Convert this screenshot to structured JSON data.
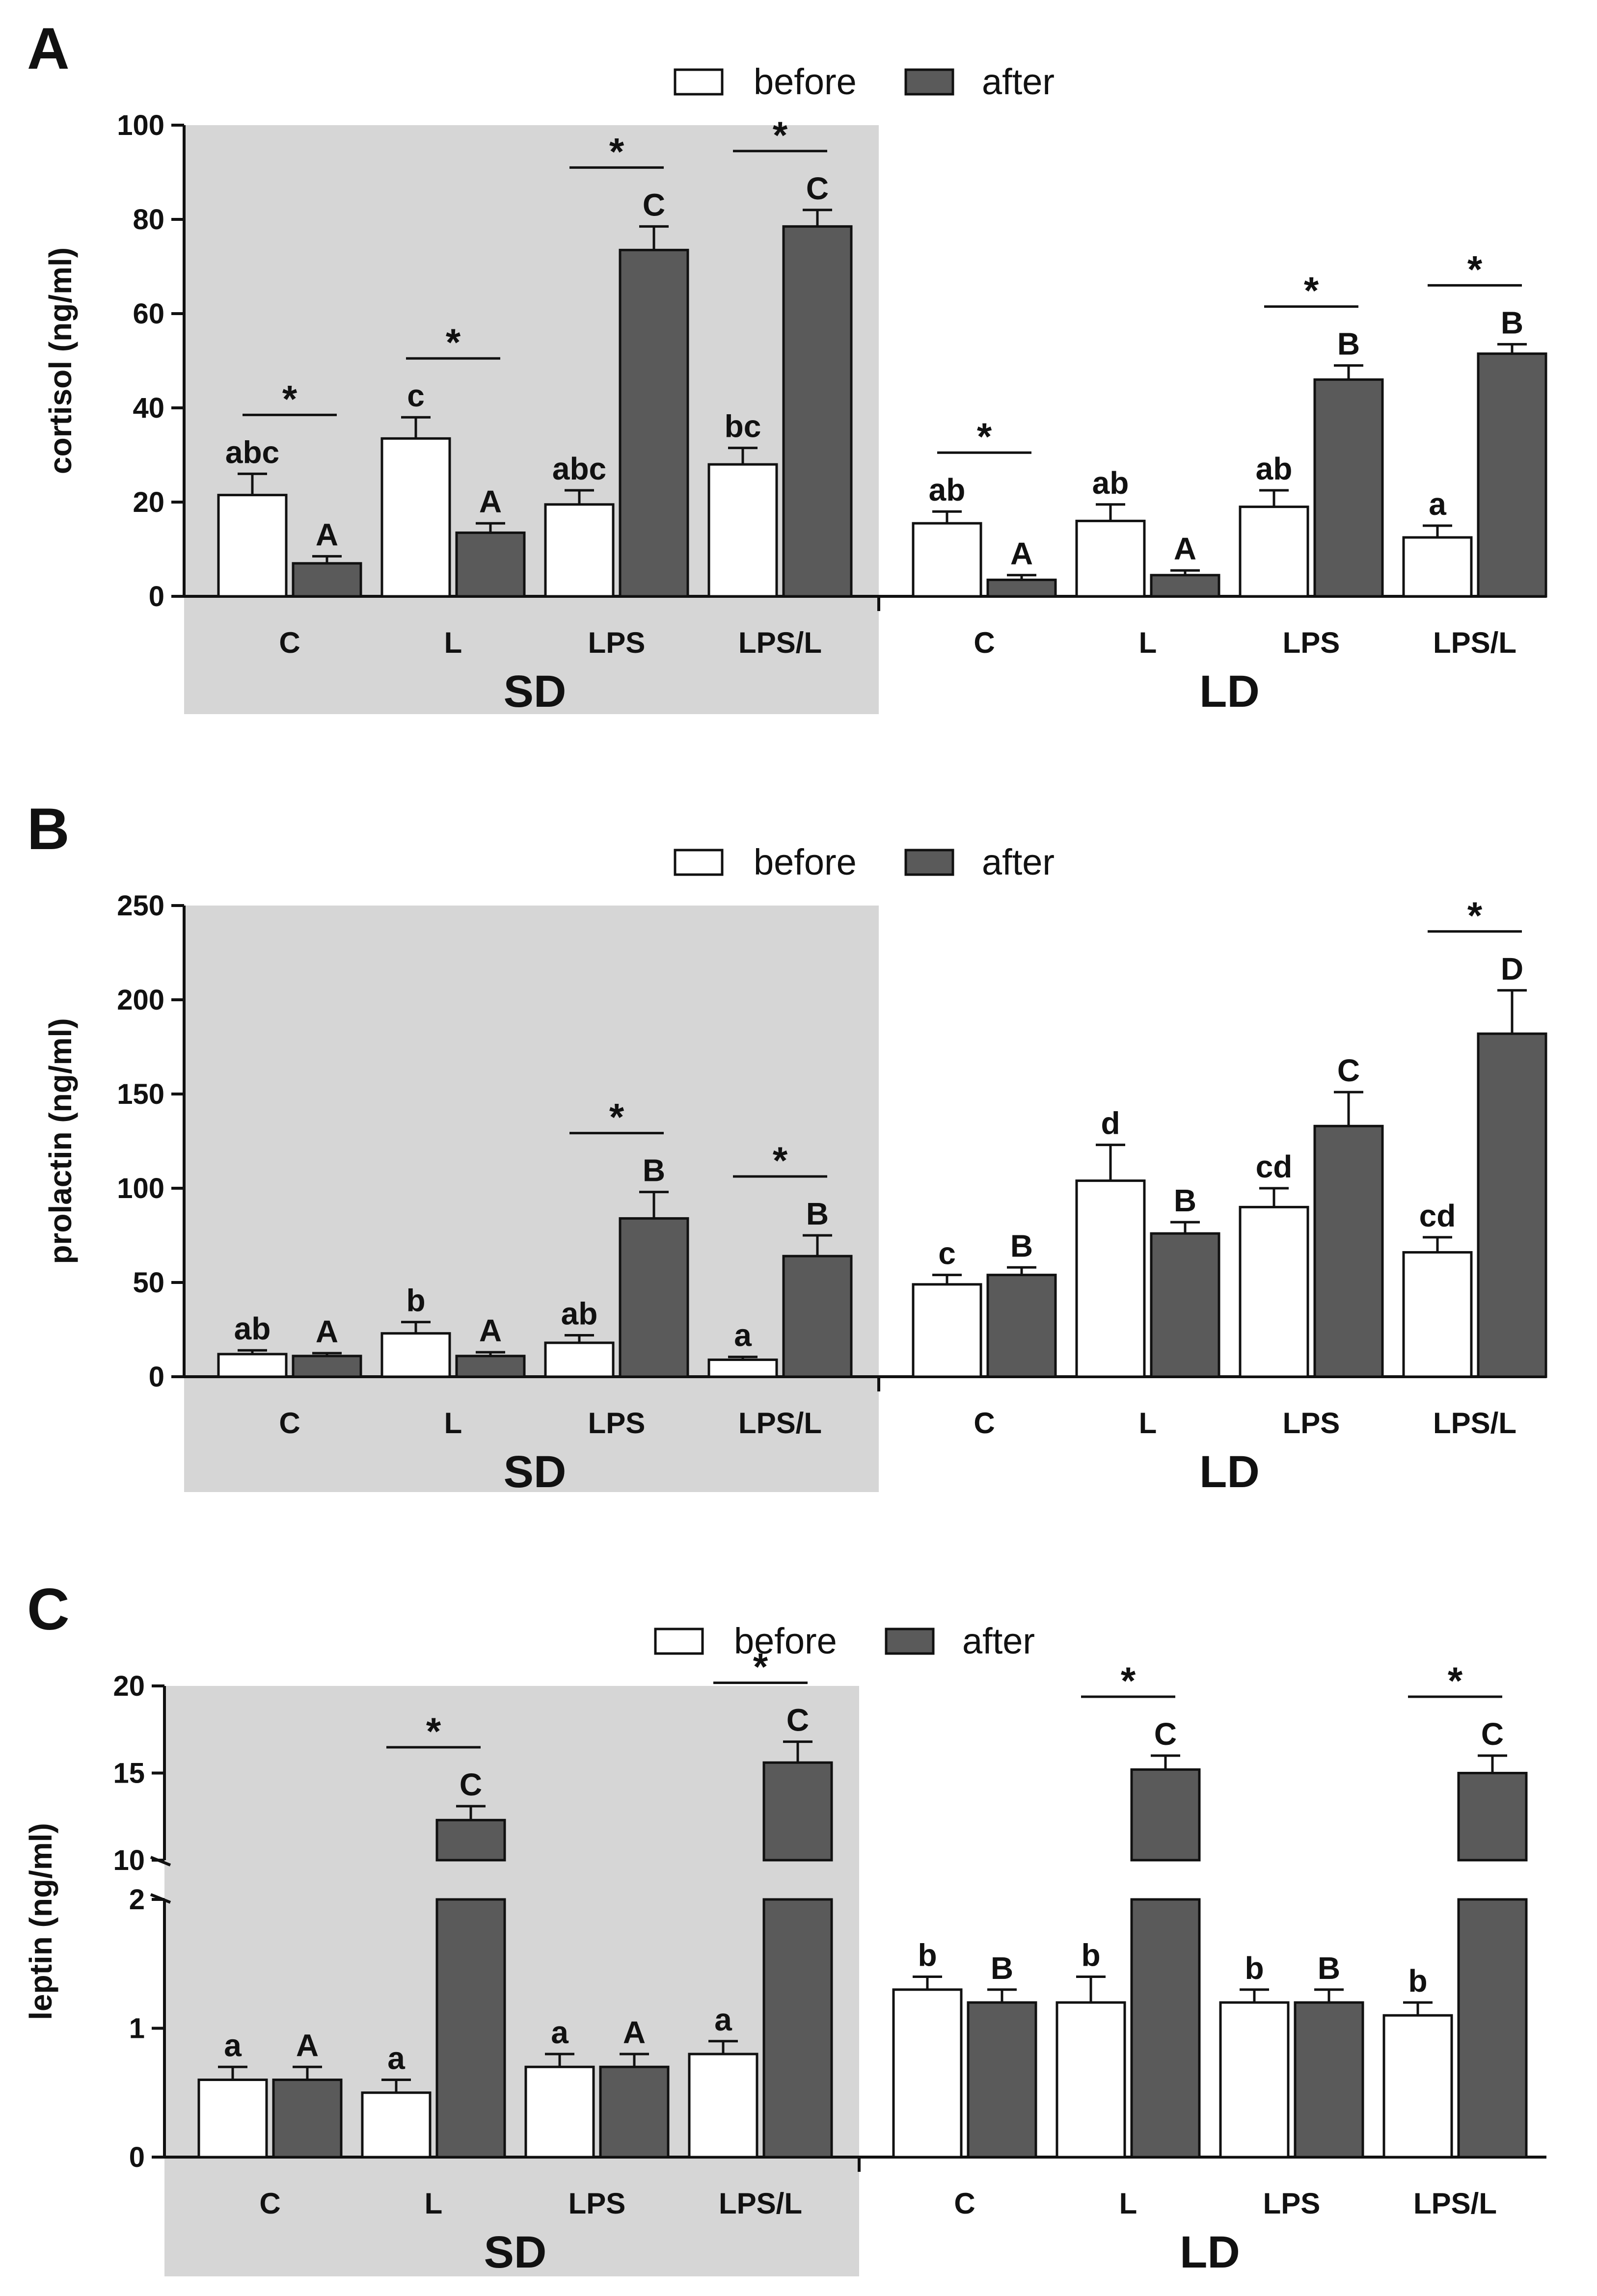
{
  "legend": {
    "before": "before",
    "after": "after"
  },
  "colors": {
    "before": "#ffffff",
    "after": "#5a5a5a",
    "shade": "#d6d6d6",
    "axis": "#111111"
  },
  "chart_data": [
    {
      "type": "bar",
      "panel": "A",
      "ylabel": "cortisol (ng/ml)",
      "ylim": [
        0,
        100
      ],
      "yticks": [
        0,
        20,
        40,
        60,
        80,
        100
      ],
      "groups": [
        "SD",
        "LD"
      ],
      "categories": [
        "C",
        "L",
        "LPS",
        "LPS/L"
      ],
      "series": [
        {
          "name": "before",
          "values": [
            [
              21.5,
              33.5,
              19.5,
              28
            ],
            [
              15.5,
              16,
              19,
              12.5
            ]
          ],
          "errors": [
            [
              4.5,
              4.5,
              3,
              3.5
            ],
            [
              2.5,
              3.5,
              3.5,
              2.5
            ]
          ],
          "labels": [
            [
              "abc",
              "c",
              "abc",
              "bc"
            ],
            [
              "ab",
              "ab",
              "ab",
              "a"
            ]
          ]
        },
        {
          "name": "after",
          "values": [
            [
              7,
              13.5,
              73.5,
              78.5
            ],
            [
              3.5,
              4.5,
              46,
              51.5
            ]
          ],
          "errors": [
            [
              1.5,
              2,
              5,
              3.5
            ],
            [
              1,
              1,
              3,
              2
            ]
          ],
          "labels": [
            [
              "A",
              "A",
              "C",
              "C"
            ],
            [
              "A",
              "A",
              "B",
              "B"
            ]
          ]
        }
      ],
      "significance": [
        [
          true,
          true,
          true,
          true
        ],
        [
          true,
          false,
          true,
          true
        ]
      ],
      "star": "*"
    },
    {
      "type": "bar",
      "panel": "B",
      "ylabel": "prolactin (ng/ml)",
      "ylim": [
        0,
        250
      ],
      "yticks": [
        0,
        50,
        100,
        150,
        200,
        250
      ],
      "groups": [
        "SD",
        "LD"
      ],
      "categories": [
        "C",
        "L",
        "LPS",
        "LPS/L"
      ],
      "series": [
        {
          "name": "before",
          "values": [
            [
              12,
              23,
              18,
              9
            ],
            [
              49,
              104,
              90,
              66
            ]
          ],
          "errors": [
            [
              2,
              6,
              4,
              1.5
            ],
            [
              5,
              19,
              10,
              8
            ]
          ],
          "labels": [
            [
              "ab",
              "b",
              "ab",
              "a"
            ],
            [
              "c",
              "d",
              "cd",
              "cd"
            ]
          ]
        },
        {
          "name": "after",
          "values": [
            [
              11,
              11,
              84,
              64
            ],
            [
              54,
              76,
              133,
              182
            ]
          ],
          "errors": [
            [
              1.5,
              2,
              14,
              11
            ],
            [
              4,
              6,
              18,
              23
            ]
          ],
          "labels": [
            [
              "A",
              "A",
              "B",
              "B"
            ],
            [
              "B",
              "B",
              "C",
              "D"
            ]
          ]
        }
      ],
      "significance": [
        [
          false,
          false,
          true,
          true
        ],
        [
          false,
          false,
          false,
          true
        ]
      ],
      "star": "*"
    },
    {
      "type": "bar",
      "panel": "C",
      "ylabel": "leptin (ng/ml)",
      "ylim": [
        0,
        20
      ],
      "axis_break": [
        2,
        10
      ],
      "yticks": [
        0,
        1,
        2,
        10,
        15,
        20
      ],
      "groups": [
        "SD",
        "LD"
      ],
      "categories": [
        "C",
        "L",
        "LPS",
        "LPS/L"
      ],
      "series": [
        {
          "name": "before",
          "values": [
            [
              0.6,
              0.5,
              0.7,
              0.8
            ],
            [
              1.3,
              1.2,
              1.2,
              1.1
            ]
          ],
          "errors": [
            [
              0.1,
              0.1,
              0.1,
              0.1
            ],
            [
              0.1,
              0.2,
              0.1,
              0.1
            ]
          ],
          "labels": [
            [
              "a",
              "a",
              "a",
              "a"
            ],
            [
              "b",
              "b",
              "b",
              "b"
            ]
          ]
        },
        {
          "name": "after",
          "values": [
            [
              0.6,
              12.3,
              0.7,
              15.6
            ],
            [
              1.2,
              15.2,
              1.2,
              15
            ]
          ],
          "errors": [
            [
              0.1,
              0.8,
              0.1,
              1.2
            ],
            [
              0.1,
              0.8,
              0.1,
              1
            ]
          ],
          "labels": [
            [
              "A",
              "C",
              "A",
              "C"
            ],
            [
              "B",
              "C",
              "B",
              "C"
            ]
          ]
        }
      ],
      "significance": [
        [
          false,
          true,
          false,
          true
        ],
        [
          false,
          true,
          false,
          true
        ]
      ],
      "star": "*"
    }
  ]
}
